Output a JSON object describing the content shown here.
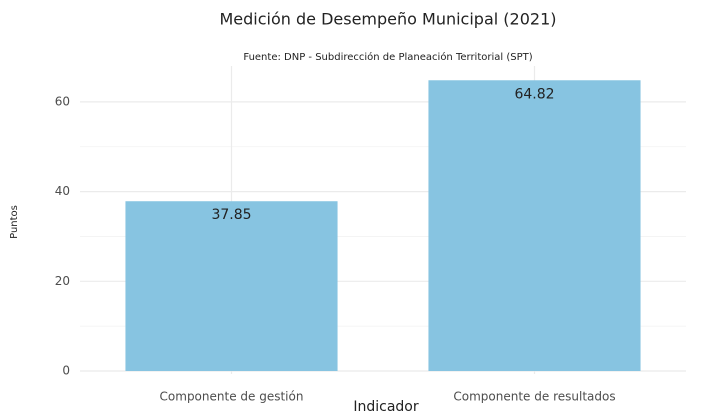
{
  "chart_data": {
    "type": "bar",
    "title": "Medición de Desempeño Municipal (2021)",
    "subtitle": "Fuente: DNP - Subdirección de Planeación Territorial (SPT)",
    "x_label": "Indicador",
    "y_label": "Puntos",
    "categories": [
      "Componente de gestión",
      "Componente de resultados"
    ],
    "values": [
      37.85,
      64.82
    ],
    "color": "#87c4e1",
    "ylim": [
      0,
      68
    ],
    "yticks": [
      0,
      20,
      40,
      60
    ],
    "y_minor_ticks": [
      10,
      30,
      50
    ],
    "grid": true
  }
}
